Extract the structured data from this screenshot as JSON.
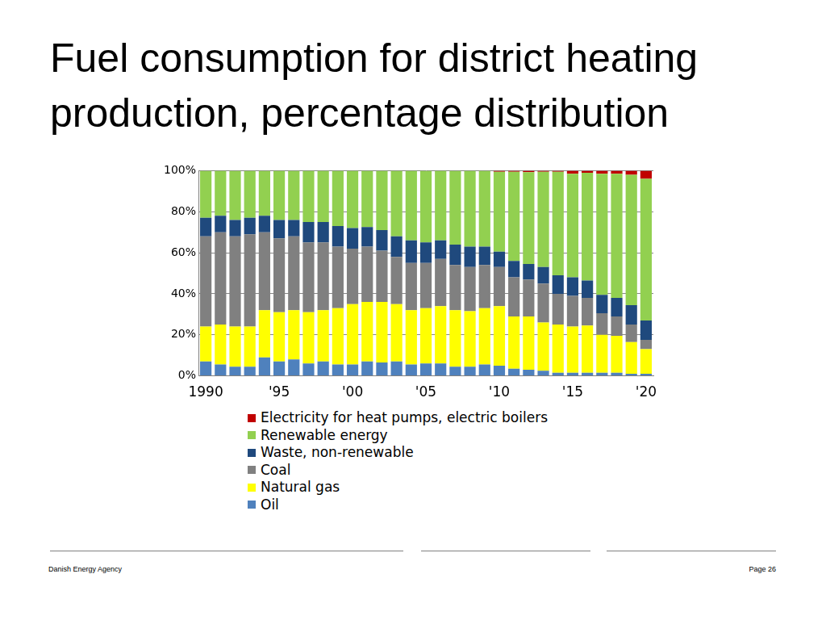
{
  "chart_data": {
    "type": "bar",
    "title": "Fuel consumption for district heating production, percentage distribution",
    "categories": [
      "1990",
      null,
      null,
      null,
      null,
      "'95",
      null,
      null,
      null,
      null,
      "'00",
      null,
      null,
      null,
      null,
      "'05",
      null,
      null,
      null,
      null,
      "'10",
      null,
      null,
      null,
      null,
      "'15",
      null,
      null,
      null,
      null,
      "'20"
    ],
    "series": [
      {
        "name": "Oil",
        "color": "#4f81bd",
        "values": [
          7,
          5.5,
          4.5,
          4.5,
          9,
          7,
          8,
          6,
          7,
          5.5,
          5.5,
          7,
          6.5,
          7,
          5.5,
          6,
          6,
          4.5,
          4.5,
          5.5,
          5,
          3.5,
          3,
          2.5,
          1.5,
          1.5,
          1.5,
          1.5,
          1.5,
          1,
          1
        ]
      },
      {
        "name": "Natural gas",
        "color": "#ffff00",
        "values": [
          17,
          19.5,
          19.5,
          19.5,
          23,
          24,
          24,
          25,
          25,
          27.5,
          29.5,
          29,
          29.5,
          28,
          26.5,
          27,
          28,
          27.5,
          27,
          27.5,
          29,
          25.5,
          26,
          23.5,
          23.5,
          22.5,
          23,
          18.5,
          18,
          15.5,
          12
        ]
      },
      {
        "name": "Coal",
        "color": "#808080",
        "values": [
          44,
          45,
          44,
          45,
          38,
          36,
          36,
          34,
          33,
          30,
          27,
          27,
          25,
          23,
          23,
          22,
          23,
          22,
          21.5,
          21,
          19,
          19,
          18,
          19,
          15,
          15,
          13.5,
          10.5,
          9.5,
          8.5,
          4.5
        ]
      },
      {
        "name": "Waste, non-renewable",
        "color": "#1f497d",
        "values": [
          9,
          8,
          8,
          8,
          8,
          9,
          8,
          10,
          10,
          10,
          10,
          9.5,
          10,
          10,
          11,
          10,
          9,
          10,
          10,
          9,
          7.5,
          8,
          7.5,
          8,
          9,
          9,
          8.5,
          9,
          9,
          9.5,
          9.5
        ]
      },
      {
        "name": "Renewable energy",
        "color": "#92d050",
        "values": [
          23,
          22,
          24,
          23,
          22,
          24,
          24,
          25,
          25,
          27,
          28,
          27.5,
          29,
          32,
          34,
          35,
          34,
          36,
          37,
          37,
          39,
          43.5,
          44.8,
          46.5,
          50.5,
          50.5,
          52.5,
          59,
          60.5,
          63.5,
          69
        ]
      },
      {
        "name": "Electricity for heat pumps, electric boilers",
        "color": "#c00000",
        "values": [
          0,
          0,
          0,
          0,
          0,
          0,
          0,
          0,
          0,
          0,
          0,
          0,
          0,
          0,
          0,
          0,
          0,
          0,
          0,
          0,
          0.5,
          0.5,
          0.7,
          0.5,
          0.5,
          1.5,
          1,
          1.5,
          1.5,
          2,
          4
        ]
      }
    ],
    "stacked": true,
    "ylim": [
      0,
      100
    ],
    "yticks": [
      {
        "value": 0,
        "label": "0%"
      },
      {
        "value": 20,
        "label": "20%"
      },
      {
        "value": 40,
        "label": "40%"
      },
      {
        "value": 60,
        "label": "60%"
      },
      {
        "value": 80,
        "label": "80%"
      },
      {
        "value": 100,
        "label": "100%"
      }
    ],
    "grid": true,
    "legend": "bottom"
  },
  "footer": {
    "source": "Danish Energy Agency",
    "page": "Page 26"
  }
}
